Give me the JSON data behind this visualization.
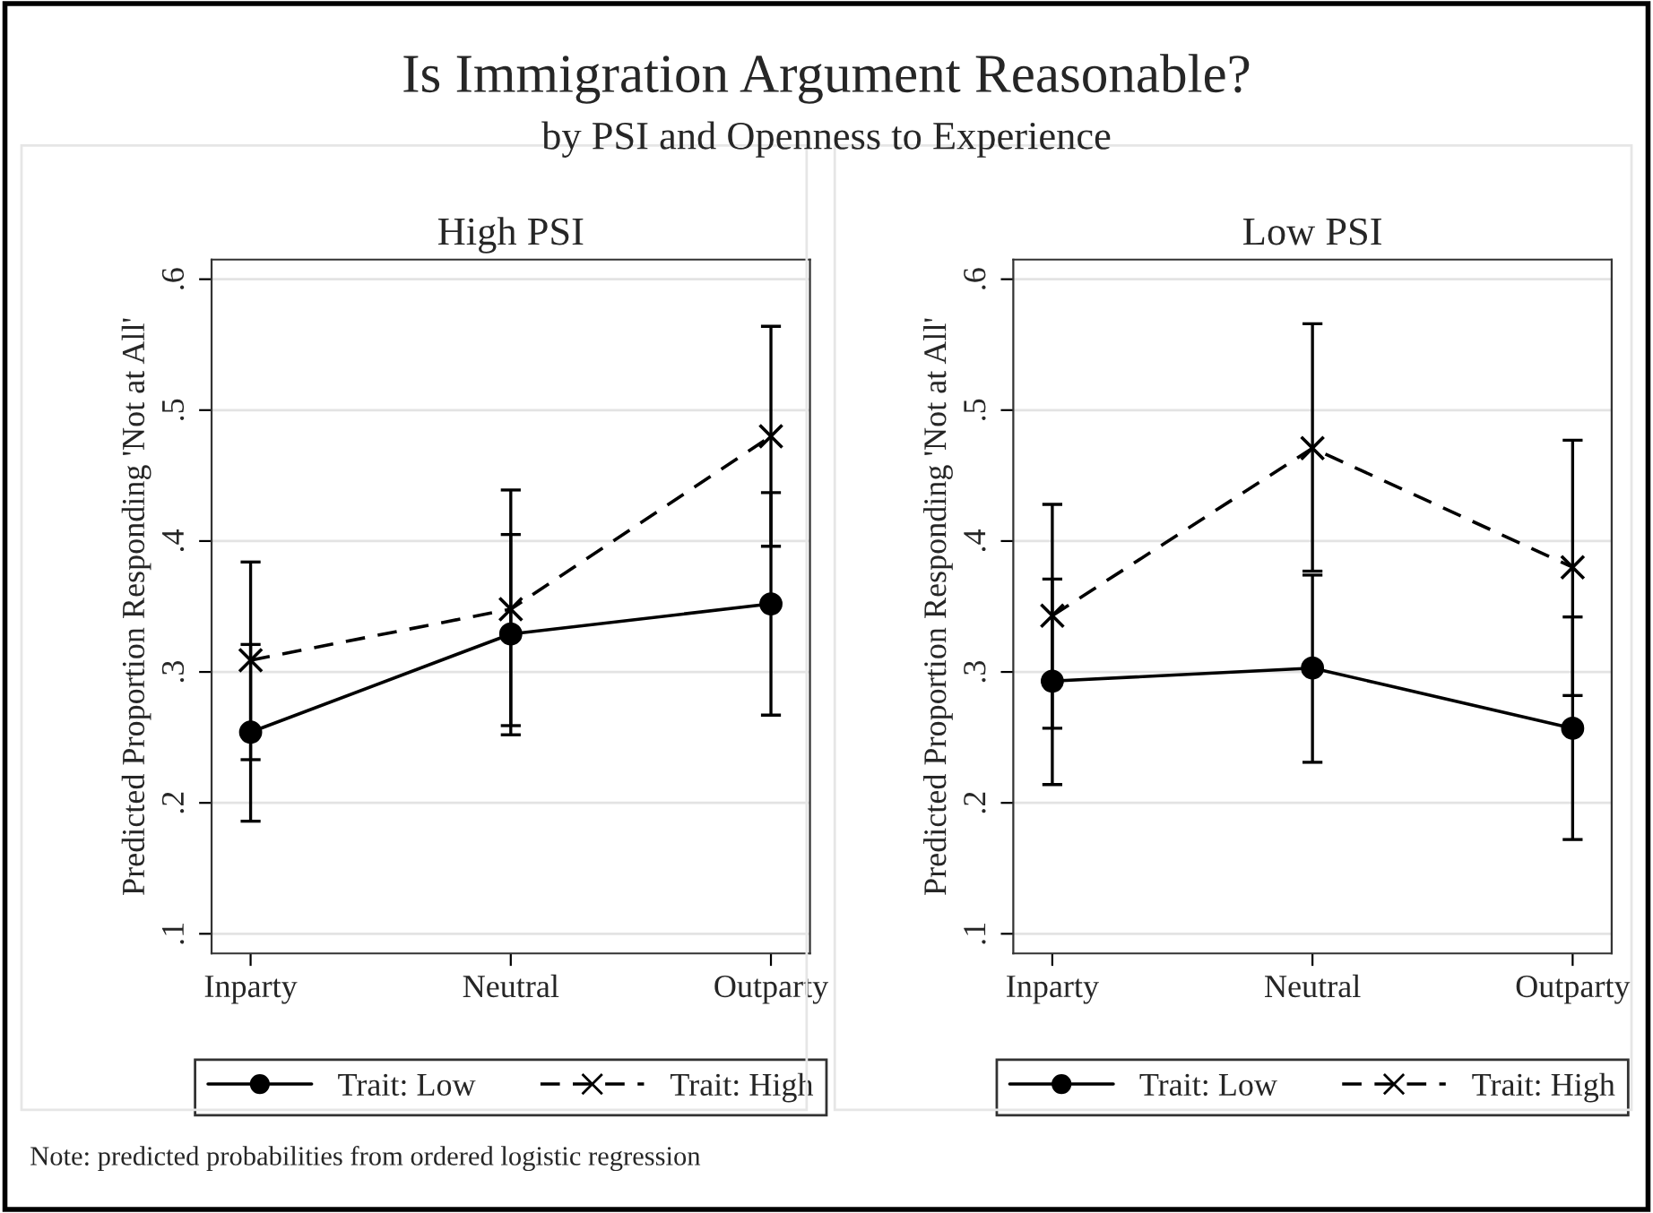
{
  "chart_data": [
    {
      "type": "line",
      "title": "High PSI",
      "ylabel": "Predicted Proportion Responding 'Not at All'",
      "categories": [
        "Inparty",
        "Neutral",
        "Outparty"
      ],
      "ylim": [
        0.085,
        0.615
      ],
      "yticks": [
        {
          "value": 0.1,
          "label": ".1"
        },
        {
          "value": 0.2,
          "label": ".2"
        },
        {
          "value": 0.3,
          "label": ".3"
        },
        {
          "value": 0.4,
          "label": ".4"
        },
        {
          "value": 0.5,
          "label": ".5"
        },
        {
          "value": 0.6,
          "label": ".6"
        }
      ],
      "grid": "y",
      "legend": "bottom",
      "annotations": [
        "Is Immigration Argument Reasonable?",
        "by PSI and Openness to Experience",
        "Note: predicted probabilities from ordered logistic regression"
      ],
      "series": [
        {
          "name": "Trait: Low",
          "color": "#000000",
          "marker": "circle",
          "line_style": "solid",
          "values": [
            0.254,
            0.329,
            0.352
          ],
          "errors": [
            [
              0.186,
              0.321
            ],
            [
              0.252,
              0.405
            ],
            [
              0.267,
              0.437
            ]
          ]
        },
        {
          "name": "Trait: High",
          "color": "#000000",
          "marker": "cross",
          "line_style": "dashed",
          "values": [
            0.309,
            0.348,
            0.48
          ],
          "errors": [
            [
              0.233,
              0.384
            ],
            [
              0.259,
              0.439
            ],
            [
              0.396,
              0.564
            ]
          ]
        }
      ]
    },
    {
      "type": "line",
      "title": "Low PSI",
      "ylabel": "Predicted Proportion Responding 'Not at All'",
      "categories": [
        "Inparty",
        "Neutral",
        "Outparty"
      ],
      "ylim": [
        0.085,
        0.615
      ],
      "yticks": [
        {
          "value": 0.1,
          "label": ".1"
        },
        {
          "value": 0.2,
          "label": ".2"
        },
        {
          "value": 0.3,
          "label": ".3"
        },
        {
          "value": 0.4,
          "label": ".4"
        },
        {
          "value": 0.5,
          "label": ".5"
        },
        {
          "value": 0.6,
          "label": ".6"
        }
      ],
      "grid": "y",
      "legend": "bottom",
      "series": [
        {
          "name": "Trait: Low",
          "color": "#000000",
          "marker": "circle",
          "line_style": "solid",
          "values": [
            0.293,
            0.303,
            0.257
          ],
          "errors": [
            [
              0.214,
              0.371
            ],
            [
              0.231,
              0.374
            ],
            [
              0.172,
              0.342
            ]
          ]
        },
        {
          "name": "Trait: High",
          "color": "#000000",
          "marker": "cross",
          "line_style": "dashed",
          "values": [
            0.343,
            0.471,
            0.38
          ],
          "errors": [
            [
              0.257,
              0.428
            ],
            [
              0.377,
              0.566
            ],
            [
              0.282,
              0.477
            ]
          ]
        }
      ]
    }
  ]
}
